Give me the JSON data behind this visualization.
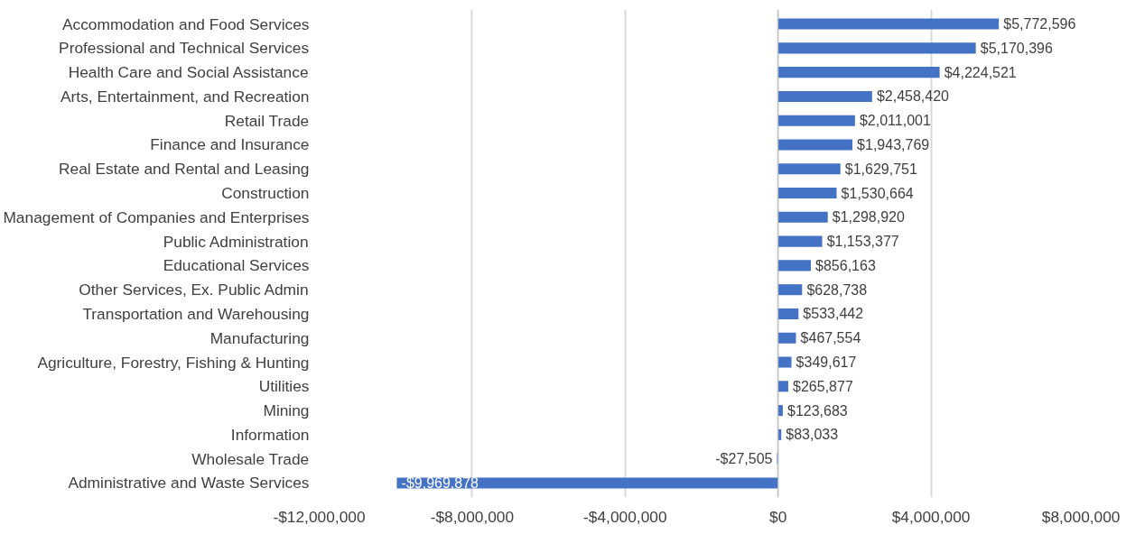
{
  "chart_data": {
    "type": "bar",
    "orientation": "horizontal",
    "color": "#4472c4",
    "categories": [
      "Accommodation and Food Services",
      "Professional and Technical Services",
      "Health Care and Social Assistance",
      "Arts, Entertainment, and Recreation",
      "Retail Trade",
      "Finance and Insurance",
      "Real Estate and Rental and Leasing",
      "Construction",
      "Management of Companies and Enterprises",
      "Public Administration",
      "Educational Services",
      "Other Services, Ex. Public Admin",
      "Transportation and Warehousing",
      "Manufacturing",
      "Agriculture, Forestry, Fishing & Hunting",
      "Utilities",
      "Mining",
      "Information",
      "Wholesale Trade",
      "Administrative and Waste Services"
    ],
    "values": [
      5772596,
      5170396,
      4224521,
      2458420,
      2011001,
      1943769,
      1629751,
      1530664,
      1298920,
      1153377,
      856163,
      628738,
      533442,
      467554,
      349617,
      265877,
      123683,
      83033,
      -27505,
      -9969878
    ],
    "value_labels": [
      "$5,772,596",
      "$5,170,396",
      "$4,224,521",
      "$2,458,420",
      "$2,011,001",
      "$1,943,769",
      "$1,629,751",
      "$1,530,664",
      "$1,298,920",
      "$1,153,377",
      "$856,163",
      "$628,738",
      "$533,442",
      "$467,554",
      "$349,617",
      "$265,877",
      "$123,683",
      "$83,033",
      "-$27,505",
      "-$9,969,878"
    ],
    "xlim": [
      -12000000,
      8000000
    ],
    "xticks": [
      {
        "value": -12000000,
        "label": "-$12,000,000"
      },
      {
        "value": -8000000,
        "label": "-$8,000,000"
      },
      {
        "value": -4000000,
        "label": "-$4,000,000"
      },
      {
        "value": 0,
        "label": "$0"
      },
      {
        "value": 4000000,
        "label": "$4,000,000"
      },
      {
        "value": 8000000,
        "label": "$8,000,000"
      }
    ],
    "grid": "x",
    "legend": false
  }
}
